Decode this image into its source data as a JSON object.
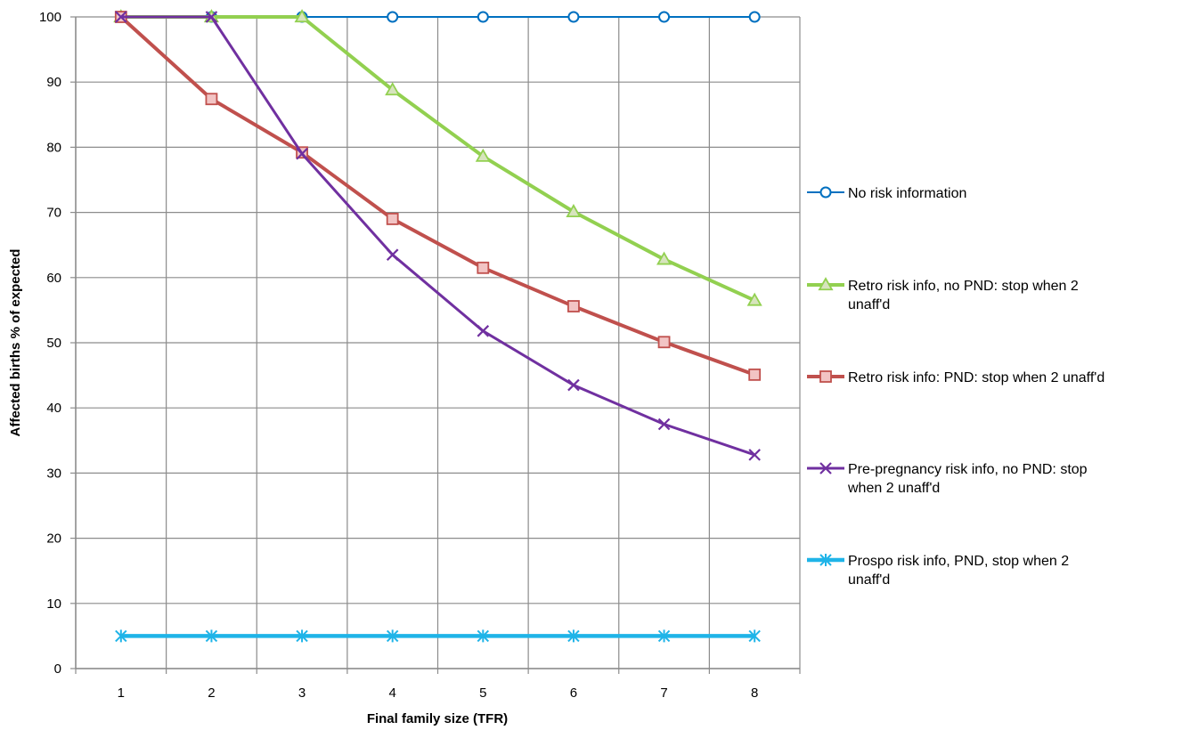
{
  "chart_data": {
    "type": "line",
    "title": "",
    "xlabel": "Final family size (TFR)",
    "ylabel": "Affected births % of expected",
    "x": [
      1,
      2,
      3,
      4,
      5,
      6,
      7,
      8
    ],
    "xlim": [
      0.5,
      8.5
    ],
    "ylim": [
      0,
      100
    ],
    "yticks": [
      0,
      10,
      20,
      30,
      40,
      50,
      60,
      70,
      80,
      90,
      100
    ],
    "grid": true,
    "legend_position": "right",
    "series": [
      {
        "name": "No risk information",
        "color": "#0070C0",
        "marker": "circle",
        "values": [
          100,
          100,
          100,
          100,
          100,
          100,
          100,
          100
        ]
      },
      {
        "name": "Retro risk info, no PND: stop when 2 unaff'd",
        "color": "#92D050",
        "marker": "triangle",
        "values": [
          100,
          100,
          100,
          88.8,
          78.6,
          70.1,
          62.8,
          56.5
        ]
      },
      {
        "name": "Retro risk info: PND: stop when 2 unaff'd",
        "color": "#C0504D",
        "marker": "square",
        "values": [
          100,
          87.4,
          79.2,
          69.0,
          61.5,
          55.6,
          50.1,
          45.1
        ]
      },
      {
        "name": "Pre-pregnancy risk info, no PND: stop when 2 unaff'd",
        "color": "#7030A0",
        "marker": "x",
        "values": [
          100,
          100,
          79.0,
          63.5,
          51.8,
          43.5,
          37.5,
          32.8
        ]
      },
      {
        "name": "Prospo risk info, PND, stop when 2 unaff'd",
        "color": "#1FB4E8",
        "marker": "star",
        "values": [
          5,
          5,
          5,
          5,
          5,
          5,
          5,
          5
        ]
      }
    ]
  }
}
